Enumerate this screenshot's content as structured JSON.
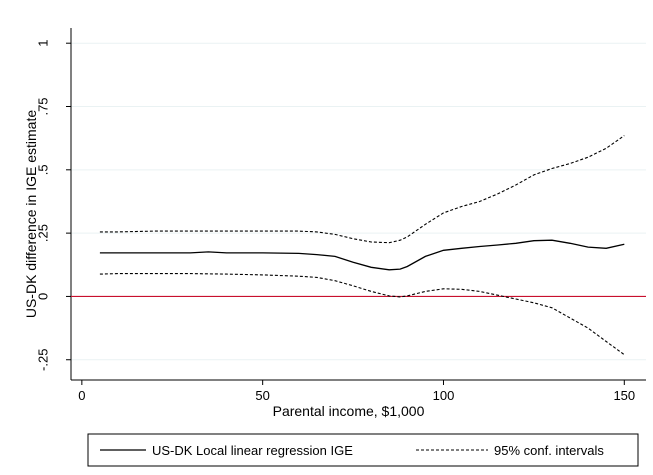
{
  "chart_data": {
    "type": "line",
    "title": "",
    "xlabel": "Parental income, $1,000",
    "ylabel": "US-DK difference in IGE estimate",
    "xlim": [
      0,
      150
    ],
    "ylim": [
      -0.25,
      1
    ],
    "x_ticks": [
      0,
      50,
      100,
      150
    ],
    "x_tick_labels": [
      "0",
      "50",
      "100",
      "150"
    ],
    "y_ticks": [
      -0.25,
      0,
      0.25,
      0.5,
      0.75,
      1
    ],
    "y_tick_labels": [
      "-.25",
      "0",
      ".25",
      ".5",
      ".75",
      "1"
    ],
    "grid": "horizontal",
    "reference_line": {
      "y": 0,
      "color": "#c8102e"
    },
    "legend_position": "bottom",
    "series": [
      {
        "name": "US-DK Local linear regression IGE",
        "style": "solid",
        "color": "#000000",
        "x": [
          5,
          10,
          20,
          30,
          35,
          40,
          50,
          60,
          65,
          70,
          75,
          80,
          85,
          88,
          90,
          95,
          100,
          105,
          110,
          115,
          120,
          125,
          130,
          135,
          140,
          145,
          150
        ],
        "y": [
          0.172,
          0.172,
          0.172,
          0.172,
          0.176,
          0.172,
          0.172,
          0.17,
          0.165,
          0.158,
          0.135,
          0.115,
          0.105,
          0.108,
          0.118,
          0.158,
          0.182,
          0.19,
          0.197,
          0.203,
          0.21,
          0.22,
          0.222,
          0.21,
          0.195,
          0.19,
          0.206
        ]
      },
      {
        "name": "95% conf. intervals",
        "style": "dashed",
        "color": "#000000",
        "upper": {
          "x": [
            5,
            10,
            20,
            30,
            40,
            50,
            60,
            65,
            70,
            75,
            80,
            85,
            88,
            90,
            95,
            100,
            105,
            110,
            115,
            120,
            125,
            130,
            135,
            140,
            145,
            150
          ],
          "y": [
            0.255,
            0.255,
            0.258,
            0.258,
            0.258,
            0.258,
            0.258,
            0.255,
            0.245,
            0.228,
            0.215,
            0.212,
            0.222,
            0.235,
            0.285,
            0.33,
            0.355,
            0.375,
            0.405,
            0.44,
            0.48,
            0.505,
            0.525,
            0.55,
            0.585,
            0.635
          ]
        },
        "lower": {
          "x": [
            5,
            10,
            20,
            30,
            40,
            50,
            60,
            65,
            70,
            75,
            80,
            85,
            88,
            90,
            95,
            100,
            105,
            110,
            115,
            120,
            125,
            130,
            135,
            140,
            145,
            150
          ],
          "y": [
            0.088,
            0.09,
            0.09,
            0.09,
            0.088,
            0.085,
            0.08,
            0.075,
            0.062,
            0.042,
            0.02,
            0.002,
            -0.002,
            0.002,
            0.02,
            0.03,
            0.028,
            0.02,
            0.005,
            -0.01,
            -0.025,
            -0.045,
            -0.085,
            -0.125,
            -0.178,
            -0.23
          ]
        }
      }
    ]
  }
}
